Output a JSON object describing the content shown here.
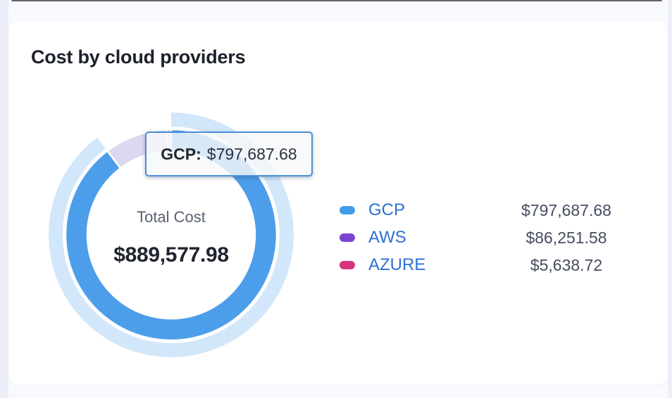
{
  "card": {
    "title": "Cost by cloud providers"
  },
  "tooltip": {
    "label": "GCP:",
    "value": "$797,687.68"
  },
  "chart_data": {
    "type": "pie",
    "subtype": "donut",
    "title": "Cost by cloud providers",
    "center_label": "Total Cost",
    "center_value": "$889,577.98",
    "total": 889577.98,
    "hovered": "GCP",
    "legend_position": "right",
    "series": [
      {
        "name": "GCP",
        "value": 797687.68,
        "display": "$797,687.68",
        "color": "#3f9ce8",
        "arc_color": "#4d9eea"
      },
      {
        "name": "AWS",
        "value": 86251.58,
        "display": "$86,251.58",
        "color": "#7c43cf",
        "arc_color": "#ded7f2"
      },
      {
        "name": "AZURE",
        "value": 5638.72,
        "display": "$5,638.72",
        "color": "#d6367f",
        "arc_color": "#f6cadb"
      }
    ],
    "colors": {
      "hover_halo": "rgba(77,158,234,0.25)",
      "slice_gap_stroke": "#ffffff",
      "legend_label_blue": "#2c6fd8",
      "tooltip_border": "#4a8fd8"
    }
  }
}
